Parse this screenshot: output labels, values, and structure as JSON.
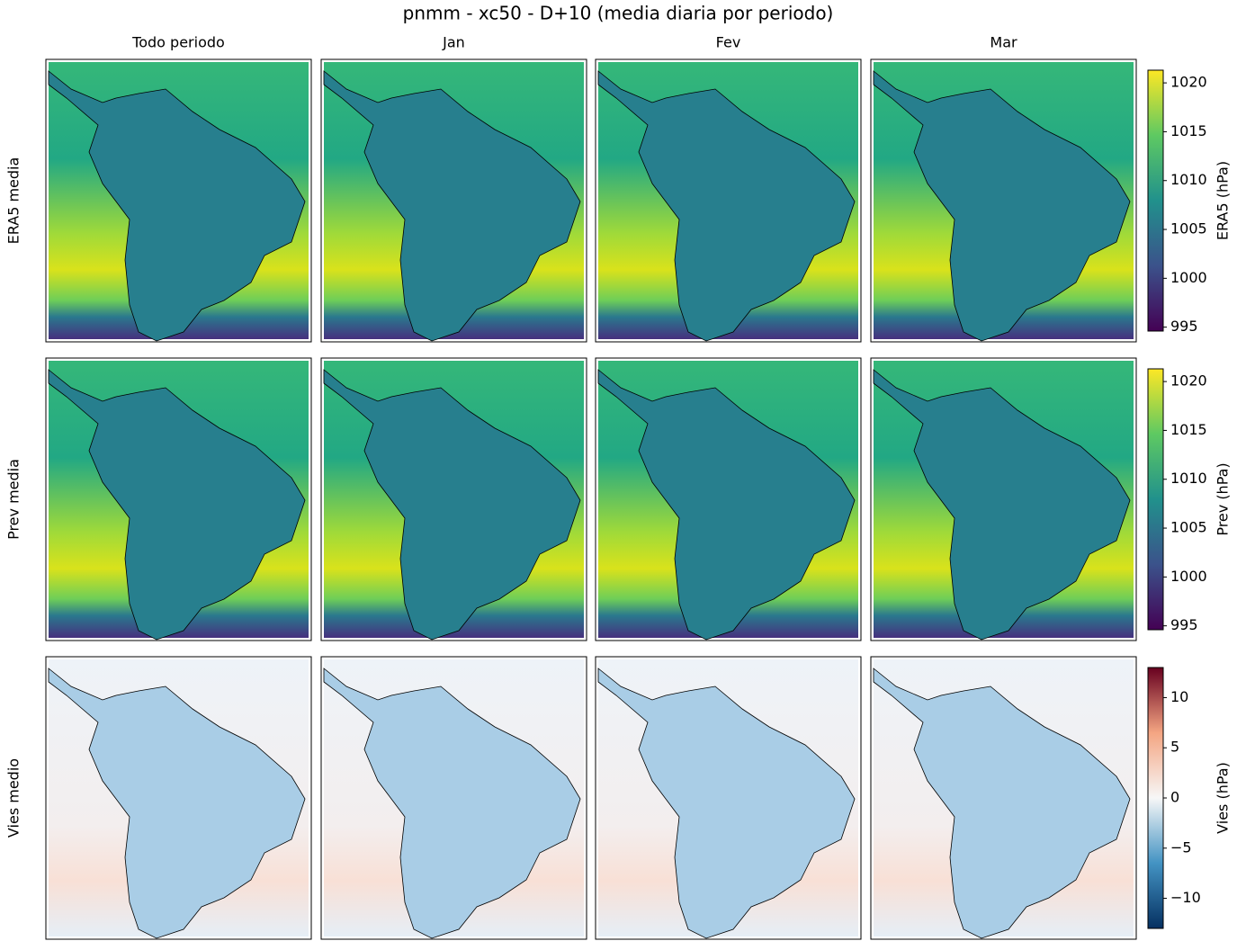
{
  "chart_data": {
    "type": "map-grid",
    "title": "pnmm - xc50 - D+10 (media diaria por periodo)",
    "columns": [
      "Todo periodo",
      "Jan",
      "Fev",
      "Mar"
    ],
    "rows": [
      {
        "name": "ERA5 media",
        "colorbar_label": "ERA5 (hPa)",
        "colormap": "viridis",
        "clim": [
          994.6,
          1021.3
        ],
        "cticks": [
          995,
          1000,
          1005,
          1010,
          1015,
          1020
        ]
      },
      {
        "name": "Prev media",
        "colorbar_label": "Prev (hPa)",
        "colormap": "viridis",
        "clim": [
          994.6,
          1021.3
        ],
        "cticks": [
          995,
          1000,
          1005,
          1010,
          1015,
          1020
        ]
      },
      {
        "name": "Vies medio",
        "colorbar_label": "Vies (hPa)",
        "colormap": "RdBu_r",
        "clim": [
          -13,
          13
        ],
        "cticks": [
          {
            "value": -10,
            "label": "−10"
          },
          {
            "value": -5,
            "label": "−5"
          },
          0,
          5,
          10
        ]
      }
    ]
  }
}
